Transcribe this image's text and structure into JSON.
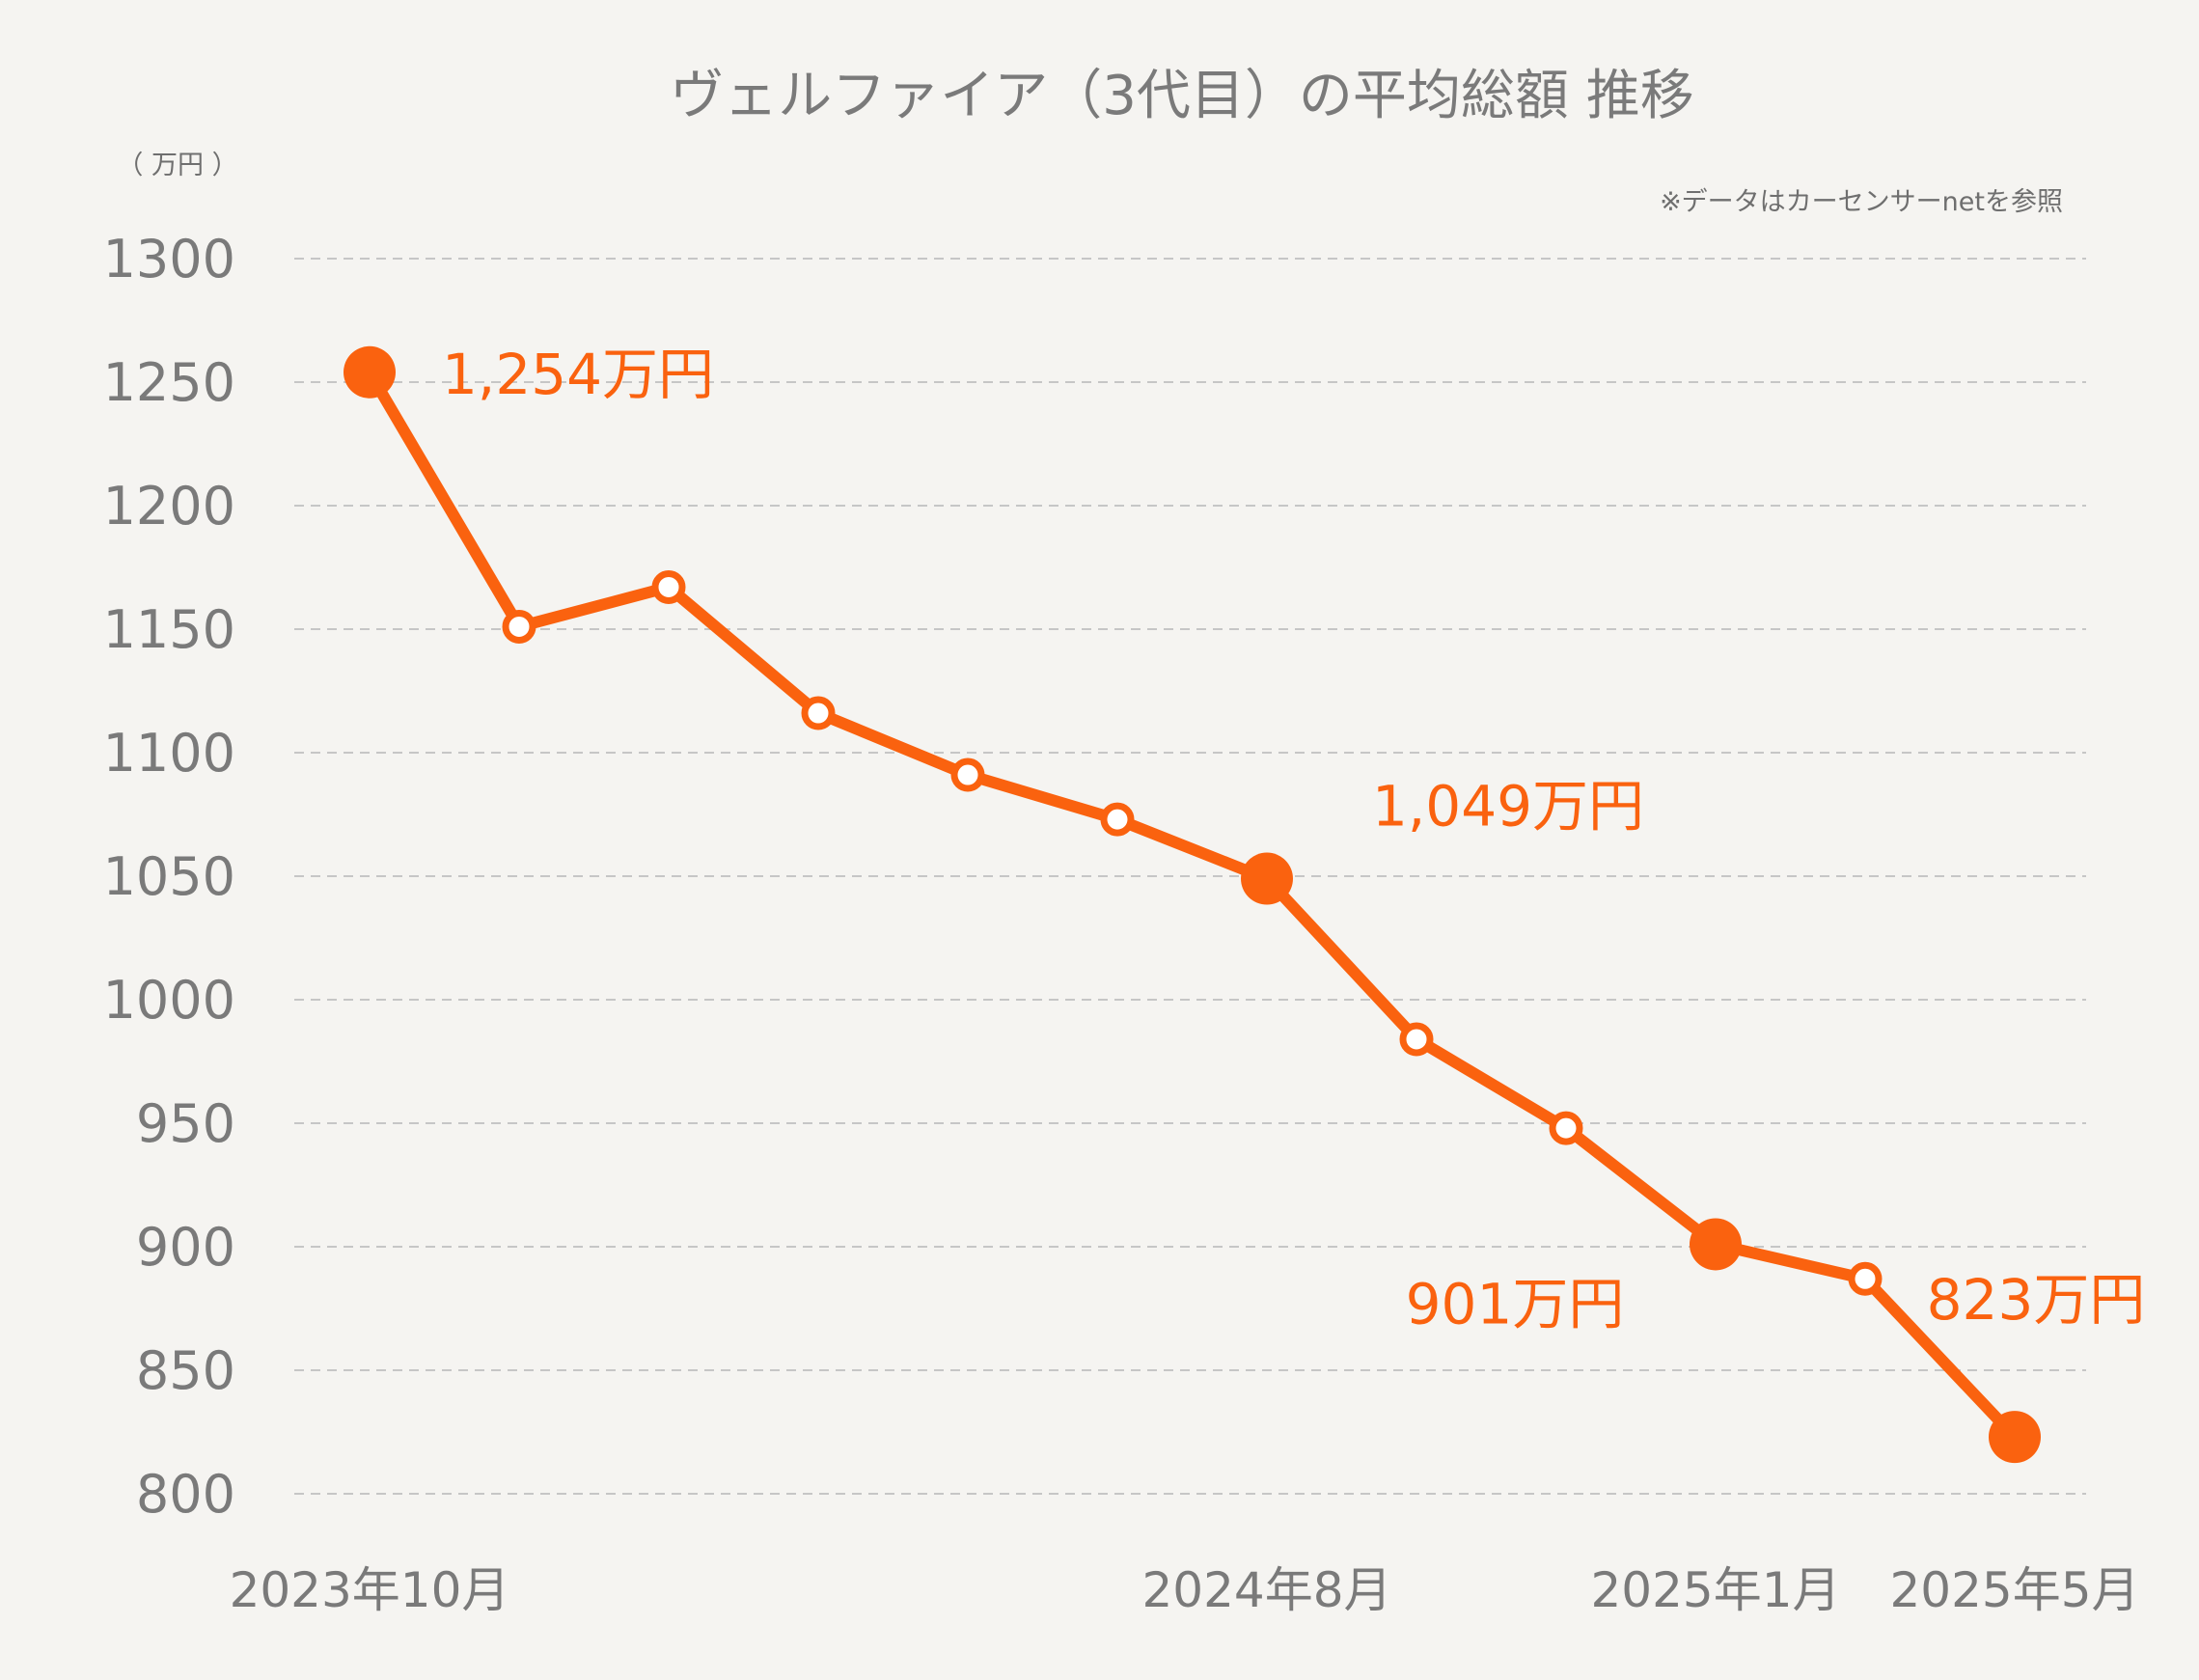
{
  "chart_data": {
    "type": "line",
    "title": "ヴェルファイア（3代目）の平均総額 推移",
    "unit_label": "（ 万円 ）",
    "source_note": "※データはカーセンサーnetを参照",
    "ylim": [
      800,
      1300
    ],
    "yticks": [
      1300,
      1250,
      1200,
      1150,
      1100,
      1050,
      1000,
      950,
      900,
      850,
      800
    ],
    "grid": true,
    "color": "#fa620f",
    "series": [
      {
        "values": [
          1254,
          1151,
          1167,
          1116,
          1091,
          1073,
          1049,
          984,
          948,
          901,
          887,
          823
        ],
        "highlight": [
          true,
          false,
          false,
          false,
          false,
          false,
          true,
          false,
          false,
          true,
          false,
          true
        ]
      }
    ],
    "x_labels": [
      {
        "index": 0,
        "text": "2023年10月"
      },
      {
        "index": 6,
        "text": "2024年8月"
      },
      {
        "index": 9,
        "text": "2025年1月"
      },
      {
        "index": 11,
        "text": "2025年5月"
      }
    ],
    "data_labels": [
      {
        "index": 0,
        "text": "1,254万円"
      },
      {
        "index": 6,
        "text": "1,049万円"
      },
      {
        "index": 9,
        "text": "901万円"
      },
      {
        "index": 11,
        "text": "823万円"
      }
    ]
  }
}
